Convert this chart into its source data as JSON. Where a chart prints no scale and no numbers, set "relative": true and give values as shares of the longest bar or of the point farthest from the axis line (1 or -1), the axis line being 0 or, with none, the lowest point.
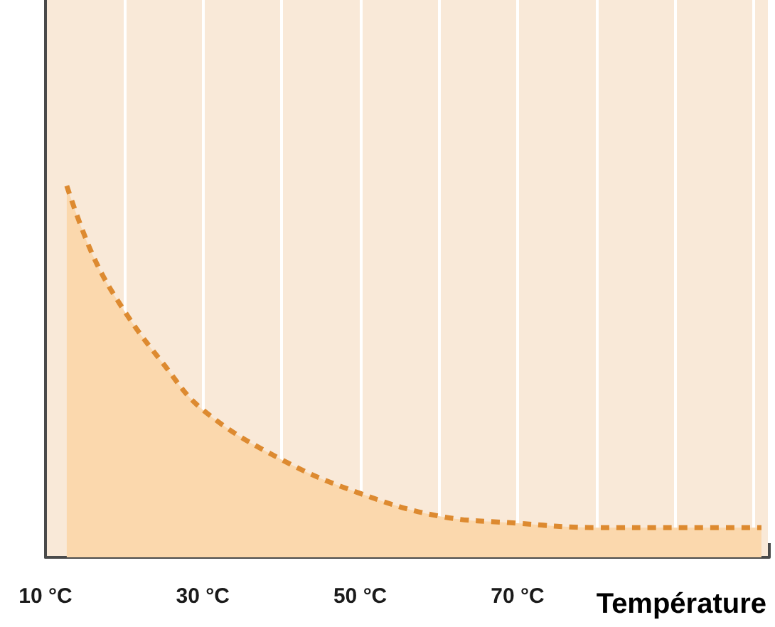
{
  "chart_data": {
    "type": "area",
    "xlabel": "Température",
    "relative": true,
    "x": [
      12.7,
      16.1,
      20,
      24.9,
      30,
      40,
      50,
      60,
      70,
      80,
      90,
      101
    ],
    "series": [
      {
        "color": "#dd8a30",
        "values": [
          1,
          0.809,
          0.664,
          0.523,
          0.397,
          0.263,
          0.172,
          0.111,
          0.092,
          0.08,
          0.08,
          0.08
        ]
      }
    ],
    "xlim": [
      10,
      102
    ],
    "xticks": [
      {
        "value": 10,
        "label": "10 °C"
      },
      {
        "value": 20,
        "label": null
      },
      {
        "value": 30,
        "label": "30 °C"
      },
      {
        "value": 40,
        "label": null
      },
      {
        "value": 50,
        "label": "50 °C"
      },
      {
        "value": 60,
        "label": null
      },
      {
        "value": 70,
        "label": "70 °C"
      },
      {
        "value": 80,
        "label": null
      },
      {
        "value": 90,
        "label": null
      },
      {
        "value": 100,
        "label": null
      }
    ],
    "grid": "x",
    "marker": "none",
    "line_style": "dashed",
    "tick_labels": "x"
  }
}
